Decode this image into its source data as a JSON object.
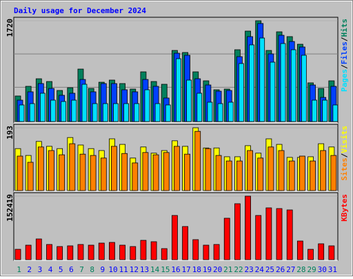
{
  "chart_data": {
    "type": "bar",
    "title": "Daily usage for December 2024",
    "categories": [
      "1",
      "2",
      "3",
      "4",
      "5",
      "6",
      "7",
      "8",
      "9",
      "10",
      "11",
      "12",
      "13",
      "14",
      "15",
      "16",
      "17",
      "18",
      "19",
      "20",
      "21",
      "22",
      "23",
      "24",
      "25",
      "26",
      "27",
      "28",
      "29",
      "30",
      "31"
    ],
    "category_colors": [
      "#00805c",
      "#0000ff",
      "#0000ff",
      "#0000ff",
      "#0000ff",
      "#0000ff",
      "#00805c",
      "#00805c",
      "#0000ff",
      "#0000ff",
      "#0000ff",
      "#0000ff",
      "#0000ff",
      "#00805c",
      "#00805c",
      "#0000ff",
      "#0000ff",
      "#0000ff",
      "#0000ff",
      "#0000ff",
      "#00805c",
      "#00805c",
      "#0000ff",
      "#0000ff",
      "#0000ff",
      "#0000ff",
      "#0000ff",
      "#00805c",
      "#00805c",
      "#0000ff",
      "#0000ff"
    ],
    "legend_separator": "/",
    "panels": [
      {
        "ylim": [
          0,
          1720
        ],
        "yticks": [
          1720
        ],
        "series": [
          {
            "name": "Hits",
            "color": "#00805c",
            "values": [
              436,
              601,
              730,
              683,
              530,
              577,
              895,
              565,
              671,
              707,
              648,
              554,
              848,
              683,
              636,
              1213,
              1178,
              848,
              695,
              542,
              554,
              1225,
              1543,
              1720,
              1213,
              1531,
              1449,
              1319,
              660,
              565,
              695
            ]
          },
          {
            "name": "Files",
            "color": "#0040ff",
            "values": [
              365,
              507,
              648,
              565,
              448,
              483,
              718,
              507,
              648,
              648,
              542,
              507,
              718,
              601,
              401,
              1166,
              1131,
              730,
              624,
              518,
              530,
              1107,
              1449,
              1673,
              1154,
              1472,
              1366,
              1272,
              624,
              412,
              601
            ]
          },
          {
            "name": "Pages",
            "color": "#00e0ff",
            "values": [
              283,
              306,
              483,
              365,
              342,
              365,
              636,
              306,
              306,
              306,
              306,
              306,
              542,
              306,
              283,
              1072,
              707,
              483,
              330,
              306,
              330,
              990,
              1308,
              1425,
              1013,
              1331,
              1225,
              1131,
              365,
              365,
              283
            ]
          }
        ]
      },
      {
        "ylim": [
          0,
          193
        ],
        "yticks": [
          193
        ],
        "series": [
          {
            "name": "Visits",
            "color": "#ffff00",
            "values": [
              129,
              108,
              151,
              136,
              129,
              163,
              140,
              129,
              123,
              159,
              142,
              100,
              134,
              115,
              123,
              153,
              136,
              193,
              131,
              131,
              104,
              104,
              138,
              115,
              159,
              142,
              102,
              102,
              104,
              144,
              134
            ]
          },
          {
            "name": "Sites",
            "color": "#ff8000",
            "values": [
              106,
              87,
              134,
              123,
              110,
              144,
              112,
              108,
              100,
              136,
              114,
              85,
              117,
              110,
              117,
              136,
              112,
              182,
              129,
              108,
              91,
              91,
              123,
              100,
              134,
              123,
              91,
              106,
              91,
              123,
              108
            ]
          }
        ]
      },
      {
        "ylim": [
          0,
          152419
        ],
        "yticks": [
          152419
        ],
        "series": [
          {
            "name": "KBytes",
            "color": "#ff0000",
            "values": [
              24855,
              34797,
              49710,
              36454,
              31483,
              33140,
              36454,
              34797,
              39768,
              41425,
              34797,
              31483,
              46396,
              43082,
              26512,
              106048,
              79536,
              48053,
              34797,
              36454,
              99420,
              134217,
              152419,
              106048,
              124275,
              122618,
              119304,
              44739,
              24855,
              38111,
              33140
            ]
          }
        ]
      }
    ]
  }
}
